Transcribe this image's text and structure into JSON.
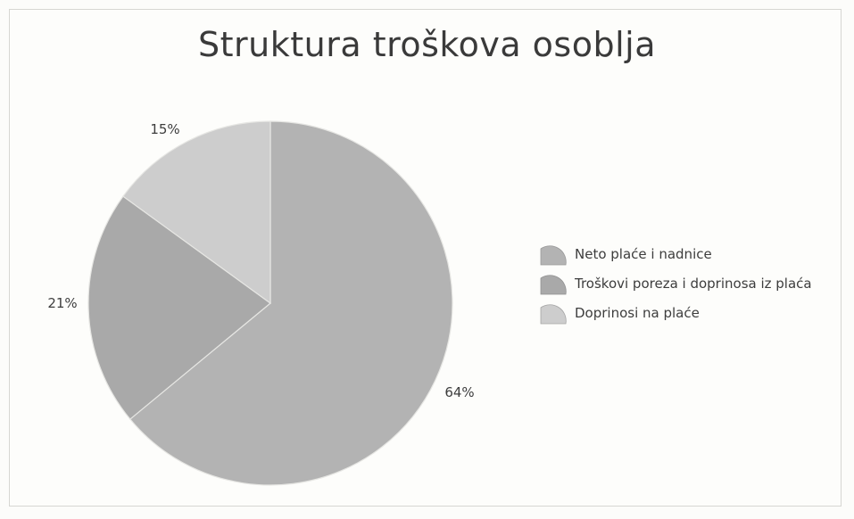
{
  "chart_data": {
    "type": "pie",
    "title": "Struktura troškova osoblja",
    "slices": [
      {
        "label": "Neto plaće i nadnice",
        "value": 64,
        "value_label": "64%",
        "color": "#b3b3b3"
      },
      {
        "label": "Troškovi poreza i doprinosa iz plaća",
        "value": 21,
        "value_label": "21%",
        "color": "#a9a9a9"
      },
      {
        "label": "Doprinosi na plaće",
        "value": 15,
        "value_label": "15%",
        "color": "#cdcdcd"
      }
    ],
    "legend_position": "right",
    "start_angle": "top, clockwise"
  }
}
